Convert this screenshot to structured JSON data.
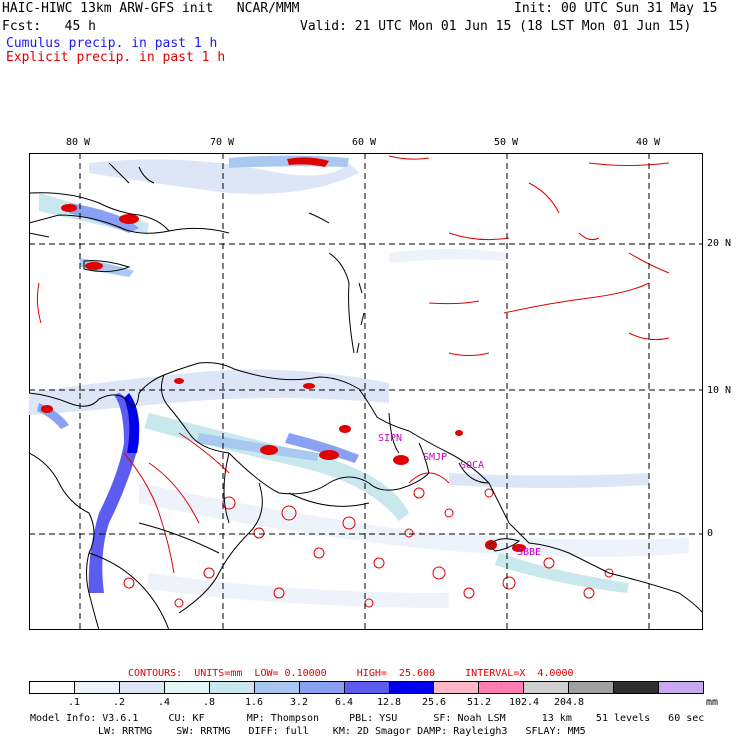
{
  "header": {
    "line1_left": "HAIC-HIWC 13km ARW-GFS init   NCAR/MMM",
    "line1_right": "Init: 00 UTC Sun 31 May 15",
    "line2_left": "Fcst:   45 h",
    "line2_right": "Valid: 21 UTC Mon 01 Jun 15 (18 LST Mon 01 Jun 15)",
    "cumulus": "Cumulus precip. in past 1 h",
    "explicit": "Explicit precip. in past 1 h",
    "cumulus_color": "#1a1aff",
    "explicit_color": "#e00000"
  },
  "map": {
    "lon_labels": [
      "80 W",
      "70 W",
      "60 W",
      "50 W",
      "40 W"
    ],
    "lat_labels": [
      "20 N",
      "10 N",
      "0"
    ],
    "site_labels": [
      "SIPN",
      "SMJP",
      "SOCA",
      "SBBE"
    ],
    "site_color": "#cc00cc"
  },
  "contours": {
    "label": "CONTOURS:  UNITS=mm  LOW= 0.10000     HIGH=  25.600     INTERVAL=X  4.0000",
    "color": "#e00000"
  },
  "colorbar": {
    "colors": [
      "#ffffff",
      "#eef2fb",
      "#dde6f7",
      "#e3f5f5",
      "#c8e8ee",
      "#a9c8f0",
      "#8aa0f2",
      "#5c5cf0",
      "#0000ee",
      "#ffb8c8",
      "#ff80b0",
      "#d0d0d0",
      "#a0a0a0",
      "#303030",
      "#c8a8f0"
    ],
    "ticks": [
      ".1",
      ".2",
      ".4",
      ".8",
      "1.6",
      "3.2",
      "6.4",
      "12.8",
      "25.6",
      "51.2",
      "102.4",
      "204.8"
    ],
    "unit": "mm"
  },
  "footer": {
    "line1": "Model Info: V3.6.1     CU: KF       MP: Thompson     PBL: YSU      SF: Noah LSM      13 km    51 levels   60 sec",
    "line2": "LW: RRTMG    SW: RRTMG   DIFF: full    KM: 2D Smagor DAMP: Rayleigh3   SFLAY: MM5"
  }
}
